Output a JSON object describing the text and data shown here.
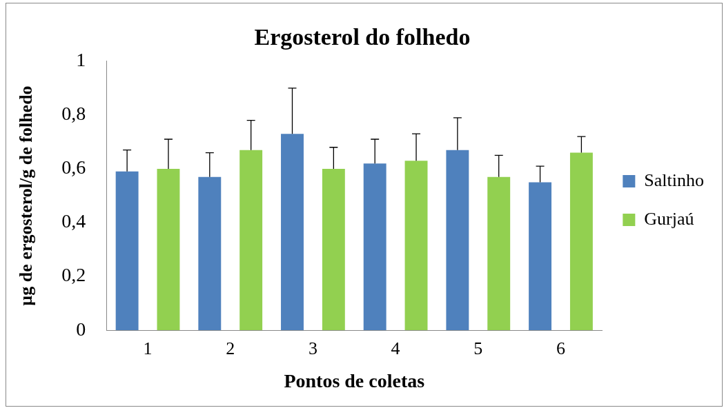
{
  "chart_data": {
    "type": "bar",
    "title": "Ergosterol do folhedo",
    "xlabel": "Pontos de coletas",
    "ylabel": "µg de ergosterol/g de folhedo",
    "categories": [
      "1",
      "2",
      "3",
      "4",
      "5",
      "6"
    ],
    "series": [
      {
        "name": "Saltinho",
        "color": "#4f81bd",
        "values": [
          0.59,
          0.57,
          0.73,
          0.62,
          0.67,
          0.55
        ],
        "errors": [
          [
            0.59,
            0.67
          ],
          [
            0.57,
            0.66
          ],
          [
            0.73,
            0.9
          ],
          [
            0.62,
            0.71
          ],
          [
            0.67,
            0.79
          ],
          [
            0.55,
            0.61
          ]
        ]
      },
      {
        "name": "Gurjaú",
        "color": "#92d050",
        "values": [
          0.6,
          0.67,
          0.6,
          0.63,
          0.57,
          0.66
        ],
        "errors": [
          [
            0.6,
            0.71
          ],
          [
            0.67,
            0.78
          ],
          [
            0.6,
            0.68
          ],
          [
            0.63,
            0.73
          ],
          [
            0.57,
            0.65
          ],
          [
            0.66,
            0.72
          ]
        ]
      }
    ],
    "ylim": [
      0,
      1
    ],
    "yticks": [
      0,
      {
        "value": 0.2,
        "label": "0,2"
      },
      {
        "value": 0.4,
        "label": "0,4"
      },
      {
        "value": 0.6,
        "label": "0,6"
      },
      {
        "value": 0.8,
        "label": "0,8"
      },
      1
    ],
    "grid": false,
    "legend": "right"
  }
}
